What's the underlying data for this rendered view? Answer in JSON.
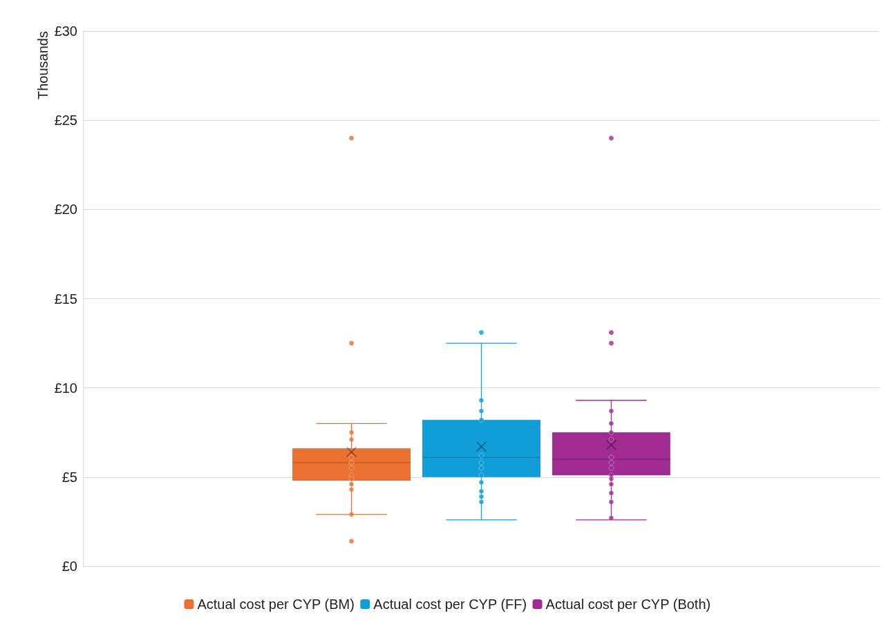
{
  "chart_data": {
    "type": "box",
    "ylabel": "Thousands",
    "categories": [
      null
    ],
    "ylim": [
      0,
      30
    ],
    "yticks": [
      {
        "value": 0,
        "label": "£0"
      },
      {
        "value": 5,
        "label": "£5"
      },
      {
        "value": 10,
        "label": "£10"
      },
      {
        "value": 15,
        "label": "£15"
      },
      {
        "value": 20,
        "label": "£20"
      },
      {
        "value": 25,
        "label": "£25"
      },
      {
        "value": 30,
        "label": "£30"
      }
    ],
    "grid": "y",
    "legend": "bottom",
    "tick_labels": "y",
    "marker": "circle",
    "series": [
      {
        "name": "Actual cost per CYP (BM)",
        "color": "#ea7132",
        "boxes": [
          {
            "low": 2.9,
            "q1": 4.8,
            "median": 5.8,
            "q3": 6.6,
            "high": 8.0,
            "mean": 6.4,
            "outliers": [
              24.0,
              12.5,
              1.4
            ]
          }
        ]
      },
      {
        "name": "Actual cost per CYP (FF)",
        "color": "#0f9ed5",
        "boxes": [
          {
            "low": 2.6,
            "q1": 5.0,
            "median": 6.1,
            "q3": 8.2,
            "high": 12.5,
            "mean": 6.7,
            "outliers": [
              13.1
            ]
          }
        ]
      },
      {
        "name": "Actual cost per CYP (Both)",
        "color": "#a02b93",
        "boxes": [
          {
            "low": 2.6,
            "q1": 5.1,
            "median": 6.0,
            "q3": 7.5,
            "high": 9.3,
            "mean": 6.8,
            "outliers": [
              24.0,
              13.1,
              12.5
            ]
          }
        ]
      },
      {
        "type": "scatter",
        "color": "#ea7132",
        "x": [
          null,
          null,
          null,
          null,
          null,
          null,
          null,
          null,
          null,
          null
        ],
        "values": [
          7.5,
          7.1,
          6.1,
          5.8,
          5.5,
          5.1,
          4.9,
          4.6,
          4.3,
          2.9
        ]
      },
      {
        "type": "scatter",
        "color": "#0f9ed5",
        "x": [
          null,
          null,
          null,
          null,
          null,
          null,
          null,
          null,
          null,
          null,
          null
        ],
        "values": [
          9.3,
          8.7,
          8.2,
          6.2,
          5.8,
          5.5,
          5.1,
          4.7,
          4.2,
          3.9,
          3.6
        ]
      },
      {
        "type": "scatter",
        "color": "#a02b93",
        "x": [
          null,
          null,
          null,
          null,
          null,
          null,
          null,
          null,
          null,
          null,
          null,
          null,
          null
        ],
        "values": [
          8.7,
          8.0,
          7.5,
          7.1,
          6.1,
          5.8,
          5.5,
          5.1,
          4.9,
          4.6,
          4.1,
          3.6,
          2.7
        ]
      }
    ]
  }
}
